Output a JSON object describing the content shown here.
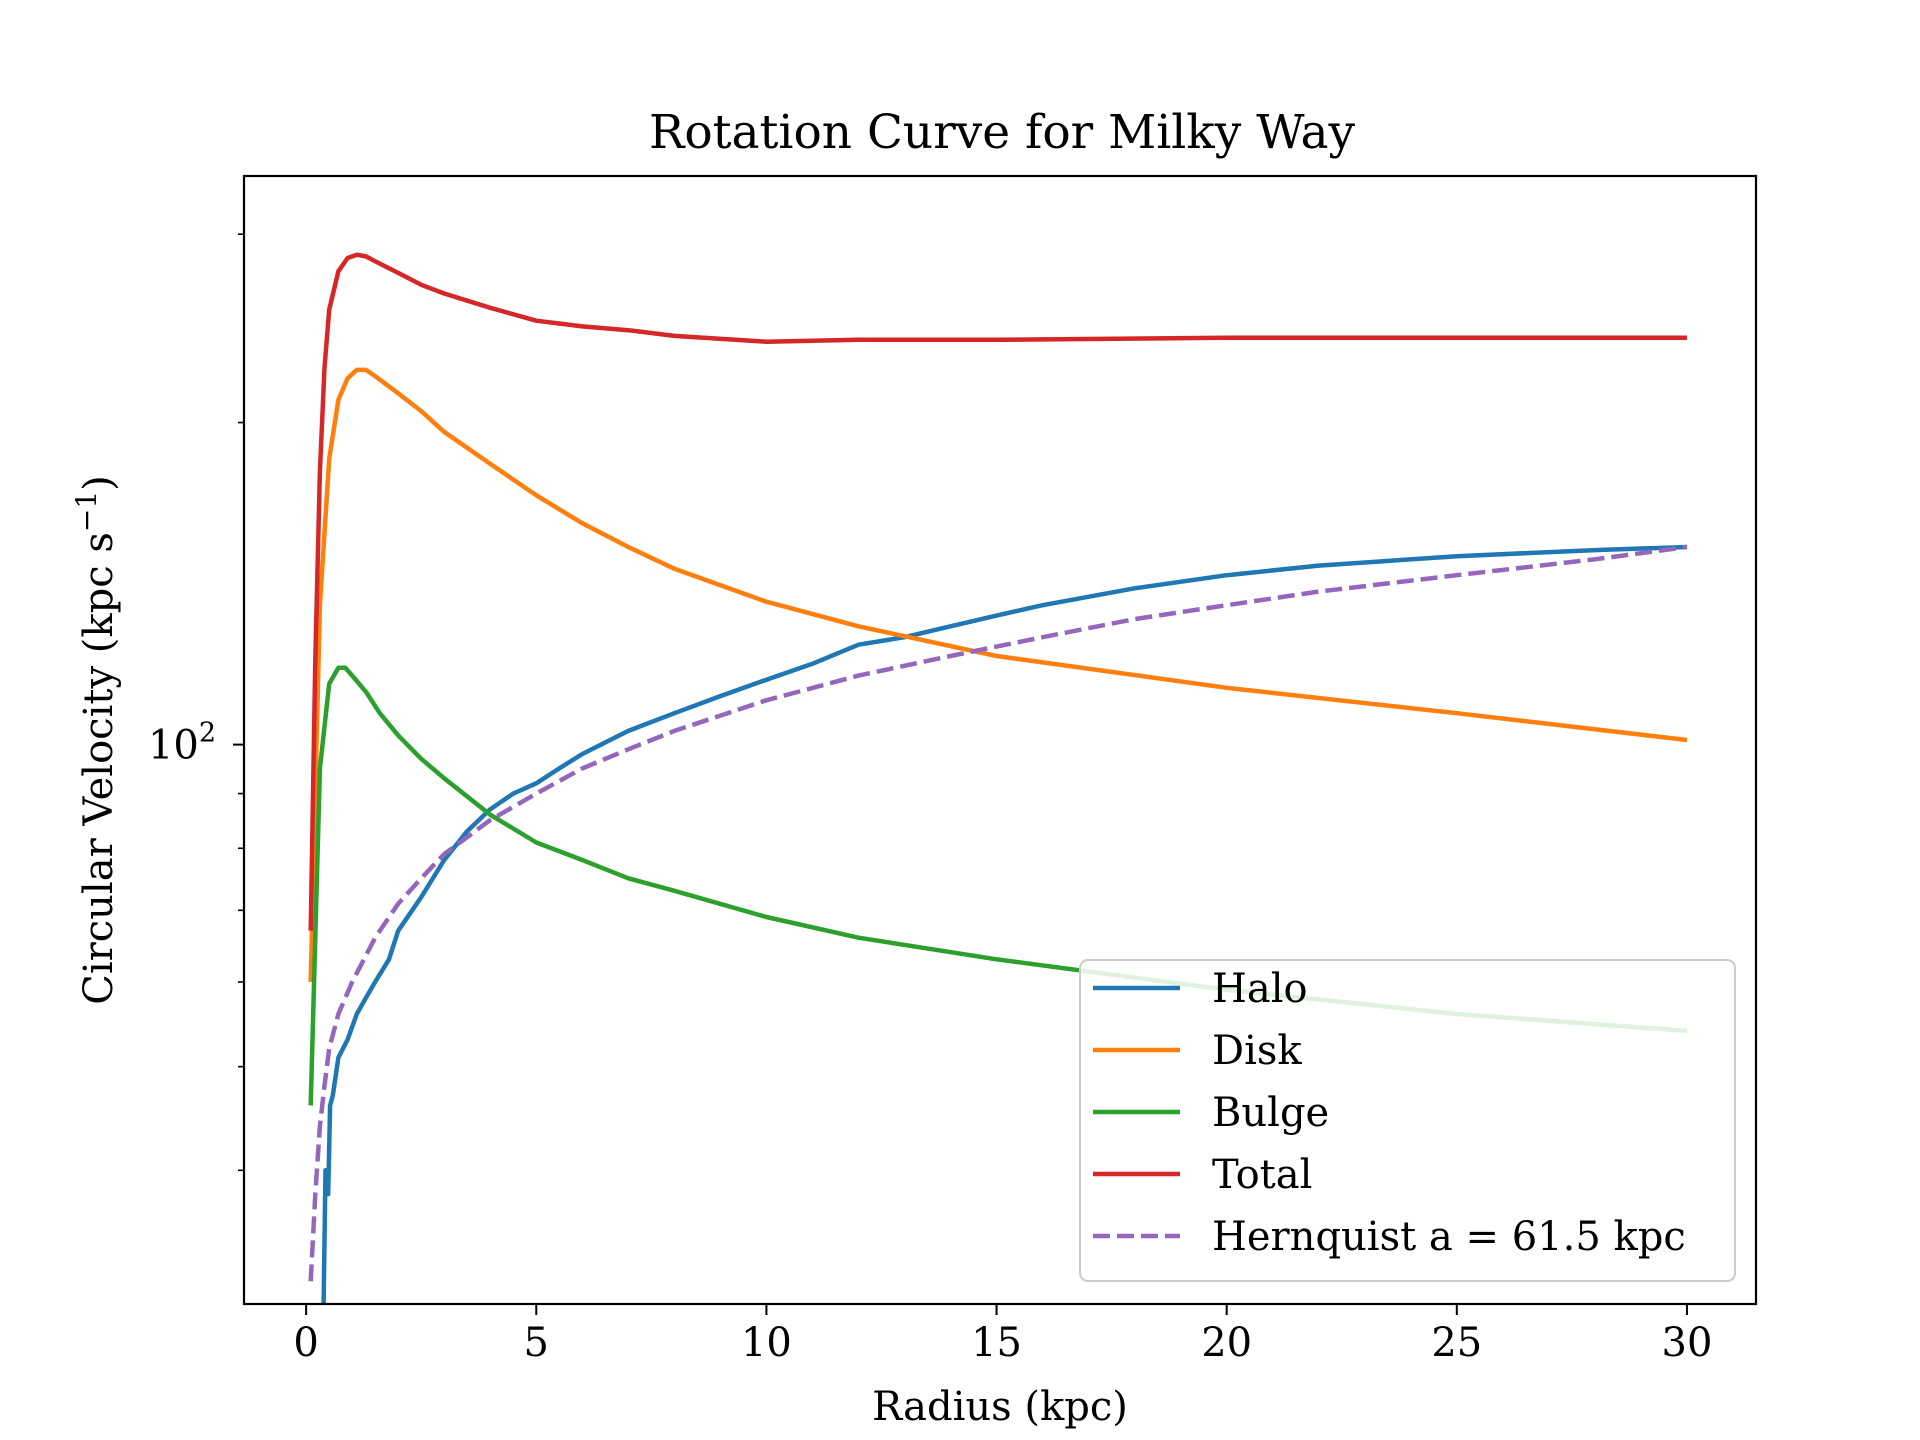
{
  "chart_data": {
    "type": "line",
    "title": "Rotation Curve for Milky Way",
    "xlabel": "Radius (kpc)",
    "ylabel": "Circular Velocity (kpc s",
    "ylabel_sup": "−1",
    "ylabel_close": ")",
    "xlim": [
      -1.35,
      31.5
    ],
    "ylim": [
      30,
      340
    ],
    "yscale": "log",
    "xticks": [
      0,
      5,
      10,
      15,
      20,
      25,
      30
    ],
    "xtick_labels": [
      "0",
      "5",
      "10",
      "15",
      "20",
      "25",
      "30"
    ],
    "yticks_major": [
      {
        "value": 100,
        "base": "10",
        "exp": "2"
      }
    ],
    "yticks_minor": [
      40,
      50,
      60,
      70,
      80,
      90,
      200,
      300
    ],
    "grid": false,
    "legend_position": "lower-right",
    "series": [
      {
        "name": "Halo",
        "color": "#1f77b4",
        "dash": false,
        "x": [
          0.38,
          0.42,
          0.48,
          0.52,
          0.58,
          0.7,
          0.9,
          1.1,
          1.3,
          1.5,
          1.8,
          2.0,
          2.5,
          3.0,
          3.5,
          4.0,
          4.5,
          5.0,
          5.5,
          6.0,
          7.0,
          8.0,
          9.0,
          10.0,
          11.0,
          12.0,
          13.0,
          14.0,
          15.0,
          16.0,
          18.0,
          20.0,
          22.0,
          25.0,
          28.0,
          30.0
        ],
        "y": [
          30,
          40,
          38,
          46,
          47,
          51,
          53,
          56,
          58,
          60,
          63,
          67,
          72,
          78,
          83,
          87,
          90,
          92,
          95,
          98,
          103,
          107,
          111,
          115,
          119,
          124,
          126,
          129,
          132,
          135,
          140,
          144,
          147,
          150,
          152,
          153
        ]
      },
      {
        "name": "Disk",
        "color": "#ff7f0e",
        "dash": false,
        "x": [
          0.1,
          0.3,
          0.5,
          0.7,
          0.9,
          1.1,
          1.3,
          1.5,
          2.0,
          2.5,
          3.0,
          4.0,
          5.0,
          6.0,
          7.0,
          8.0,
          10.0,
          12.0,
          15.0,
          20.0,
          25.0,
          30.0
        ],
        "y": [
          60,
          135,
          185,
          210,
          220,
          224,
          224,
          221,
          213,
          205,
          196,
          183,
          171,
          161,
          153,
          146,
          136,
          129,
          121,
          113,
          107,
          101
        ]
      },
      {
        "name": "Bulge",
        "color": "#2ca02c",
        "dash": false,
        "x": [
          0.1,
          0.3,
          0.5,
          0.7,
          0.85,
          1.0,
          1.3,
          1.6,
          2.0,
          2.5,
          3.0,
          4.0,
          5.0,
          6.0,
          7.0,
          8.0,
          10.0,
          12.0,
          15.0,
          20.0,
          25.0,
          30.0
        ],
        "y": [
          46,
          95,
          114,
          118,
          118,
          116,
          112,
          107,
          102,
          97,
          93,
          86,
          81,
          78,
          75,
          73,
          69,
          66,
          63,
          59,
          56,
          54
        ]
      },
      {
        "name": "Total",
        "color": "#d62728",
        "dash": false,
        "x": [
          0.1,
          0.2,
          0.3,
          0.4,
          0.5,
          0.7,
          0.9,
          1.1,
          1.3,
          1.5,
          2.0,
          2.5,
          3.0,
          4.0,
          5.0,
          6.0,
          7.0,
          8.0,
          10.0,
          12.0,
          15.0,
          20.0,
          25.0,
          30.0
        ],
        "y": [
          67,
          120,
          180,
          225,
          255,
          277,
          285,
          287,
          286,
          283,
          276,
          269,
          264,
          256,
          249,
          246,
          244,
          241,
          238,
          239,
          239,
          240,
          240,
          240
        ]
      },
      {
        "name": "Hernquist a = 61.5 kpc",
        "color": "#9467bd",
        "dash": true,
        "x": [
          0.1,
          0.2,
          0.3,
          0.4,
          0.5,
          0.7,
          1.0,
          1.5,
          2.0,
          2.5,
          3.0,
          4.0,
          5.0,
          6.0,
          7.0,
          8.0,
          10.0,
          12.0,
          14.0,
          16.0,
          18.0,
          20.0,
          22.0,
          25.0,
          28.0,
          30.0
        ],
        "y": [
          31.5,
          38,
          44,
          48,
          52,
          56,
          60,
          66,
          71,
          75,
          79,
          85,
          90,
          95,
          99,
          103,
          110,
          116,
          121,
          126,
          131,
          135,
          139,
          144,
          149,
          153
        ]
      }
    ]
  }
}
